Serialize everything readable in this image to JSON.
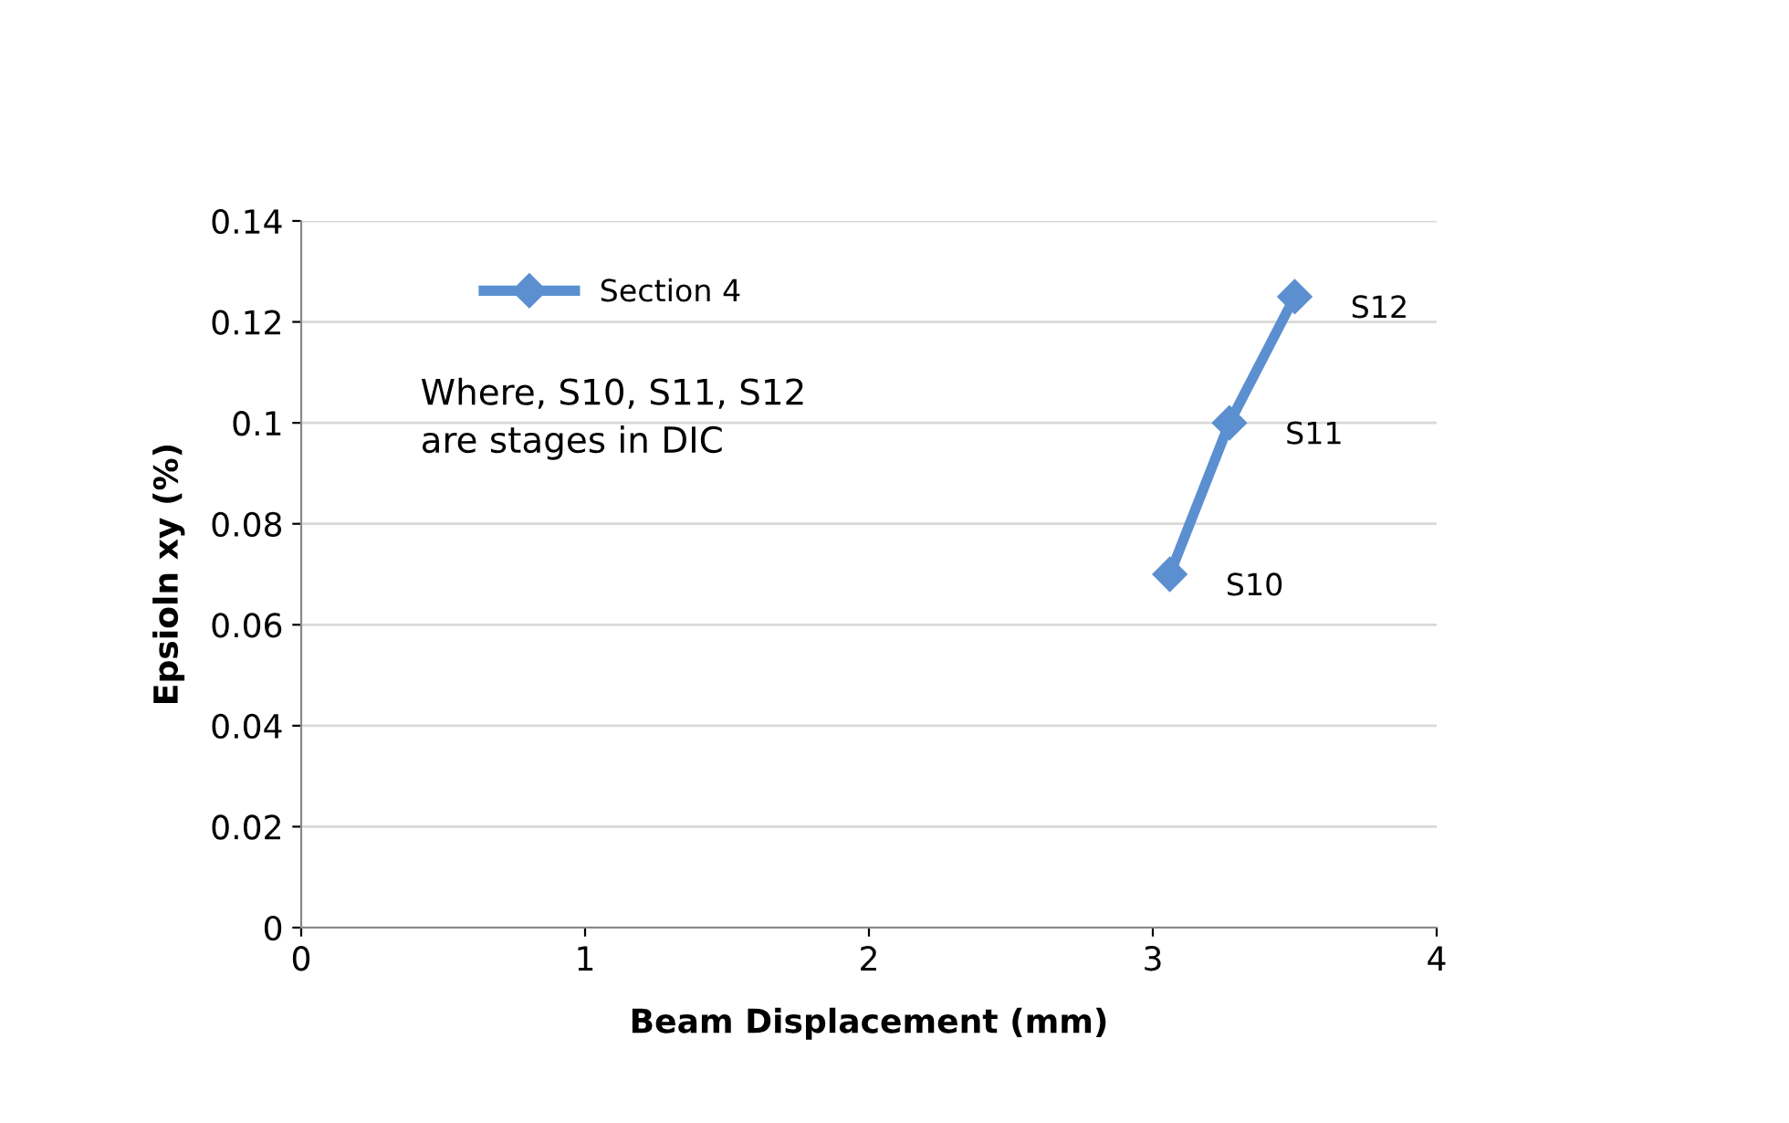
{
  "chart_data": {
    "type": "line",
    "xlabel": "Beam Displacement (mm)",
    "ylabel": "Epsioln xy (%)",
    "x": [
      3.06,
      3.27,
      3.5
    ],
    "series": [
      {
        "name": "Section 4",
        "color": "#5b8fd0",
        "values": [
          0.07,
          0.1,
          0.125
        ]
      }
    ],
    "xlim": [
      0,
      4
    ],
    "xticks": [
      0,
      1,
      2,
      3,
      4
    ],
    "ylim": [
      0,
      0.14
    ],
    "yticks": [
      0,
      0.02,
      0.04,
      0.06,
      0.08,
      0.1,
      0.12,
      0.14
    ],
    "grid": "y",
    "legend": "top left",
    "marker": "diamond",
    "line_style": "solid",
    "annotations": [
      {
        "text": "S10",
        "x": 3.06,
        "y": 0.07
      },
      {
        "text": "S11",
        "x": 3.27,
        "y": 0.1
      },
      {
        "text": "S12",
        "x": 3.5,
        "y": 0.125
      },
      "Where, S10, S11, S12\nare stages in DIC"
    ]
  }
}
